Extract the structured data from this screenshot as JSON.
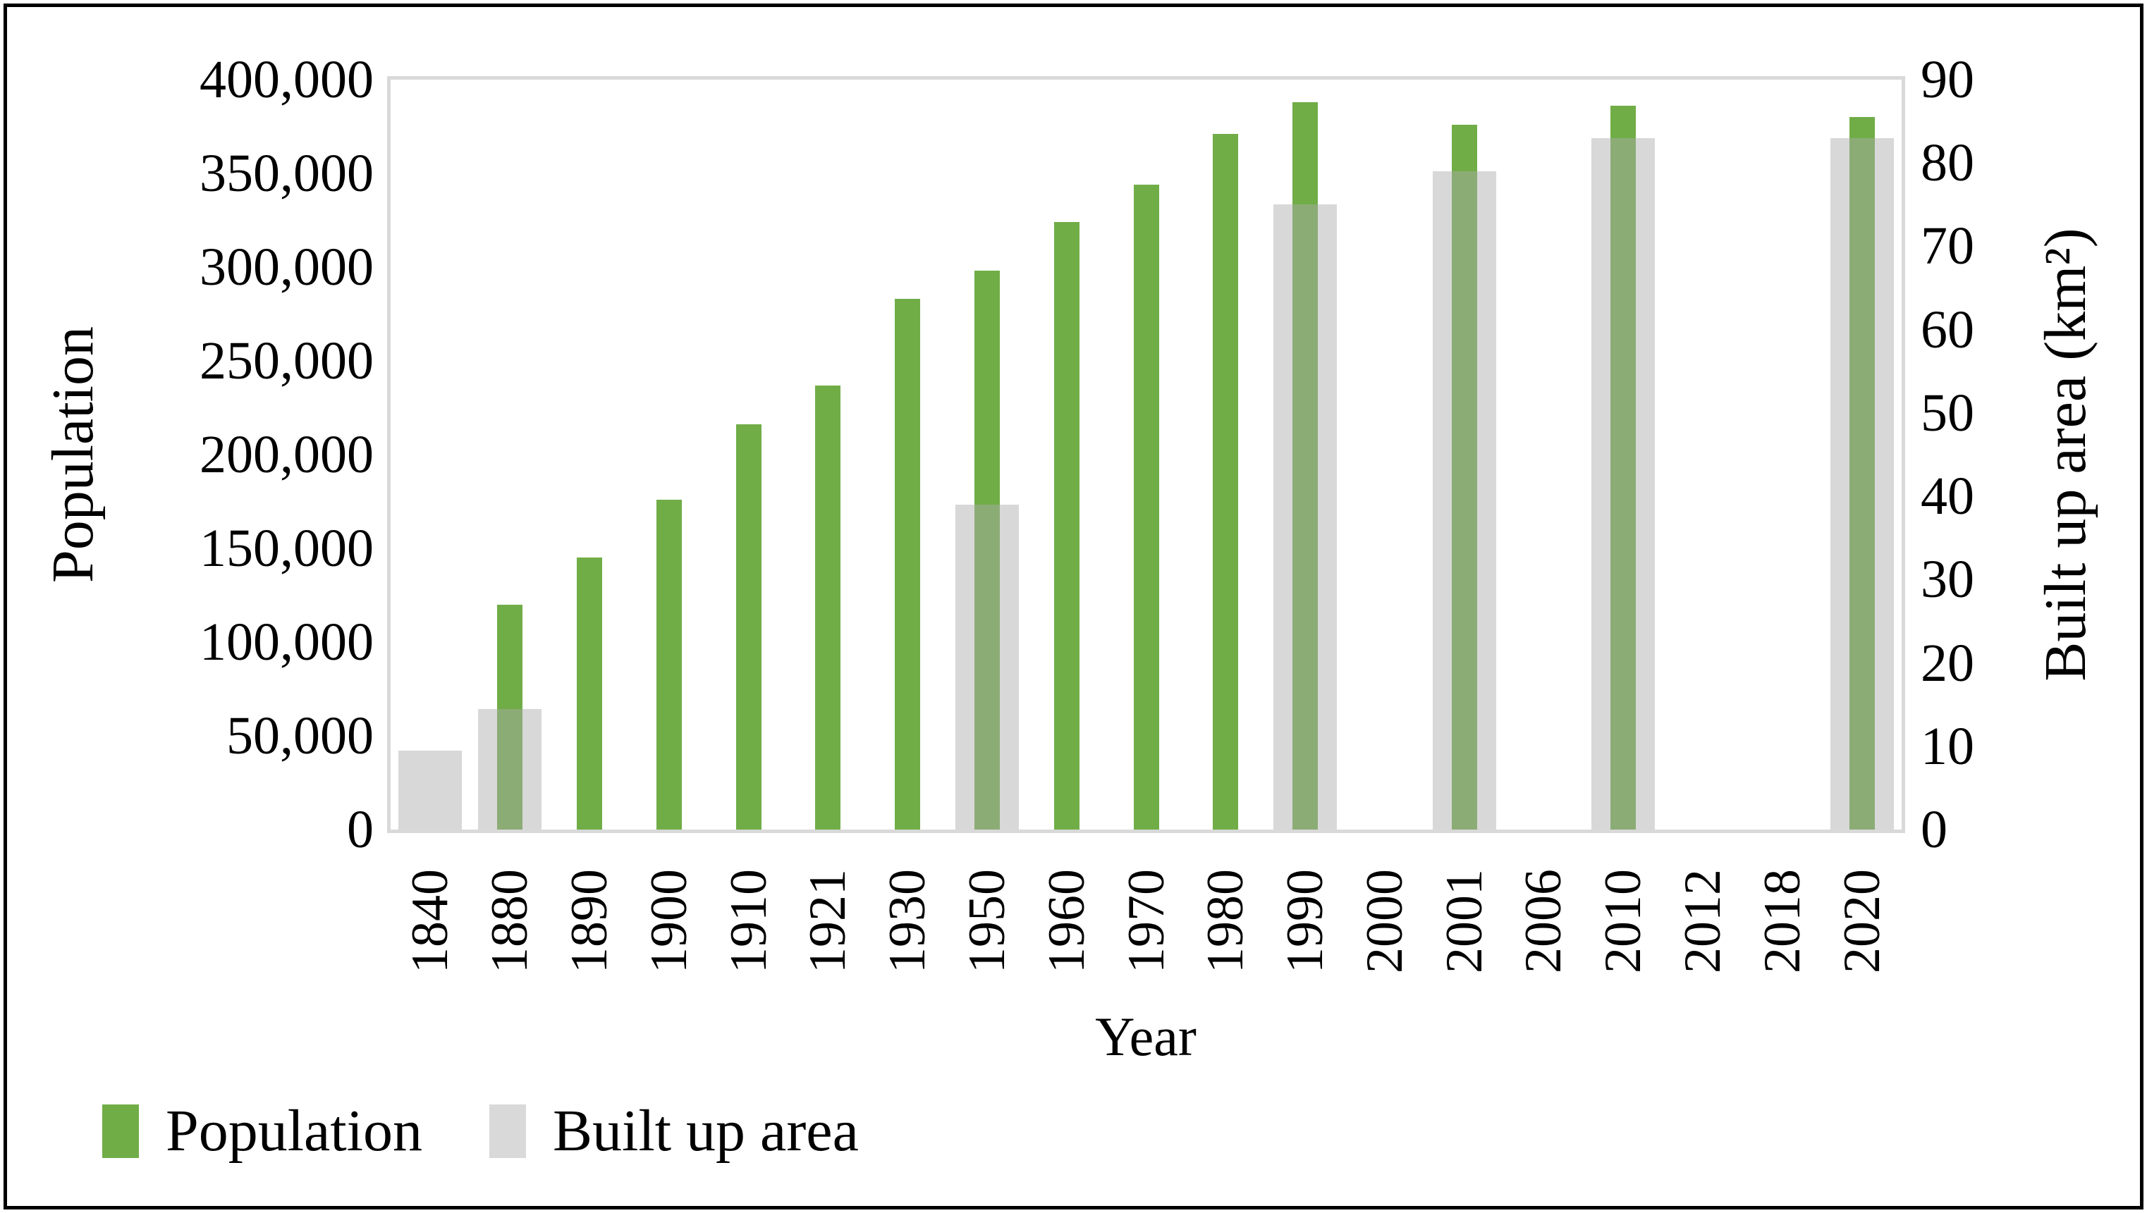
{
  "frame": {
    "background": "#FFFFFF",
    "outer_border_color": "#000000",
    "plot_border_color": "#D9D9D9"
  },
  "chart_data": {
    "type": "bar",
    "title": "",
    "xlabel": "Year",
    "grid": false,
    "legend_position": "bottom-left",
    "categories": [
      "1840",
      "1880",
      "1890",
      "1900",
      "1910",
      "1921",
      "1930",
      "1950",
      "1960",
      "1970",
      "1980",
      "1990",
      "2000",
      "2001",
      "2006",
      "2010",
      "2012",
      "2018",
      "2020"
    ],
    "left_axis": {
      "label": "Population",
      "min": 0,
      "max": 400000,
      "step": 50000,
      "tick_labels": [
        "0",
        "50,000",
        "100,000",
        "150,000",
        "200,000",
        "250,000",
        "300,000",
        "350,000",
        "400,000"
      ]
    },
    "right_axis": {
      "label": "Built up area (km²)",
      "min": 0,
      "max": 90,
      "step": 10,
      "tick_labels": [
        "0",
        "10",
        "20",
        "30",
        "40",
        "50",
        "60",
        "70",
        "80",
        "90"
      ]
    },
    "series": [
      {
        "name": "Population",
        "axis": "left",
        "color": "#70AD47",
        "values": [
          null,
          120000,
          145000,
          176000,
          216000,
          237000,
          283000,
          298000,
          324000,
          344000,
          371000,
          388000,
          null,
          376000,
          null,
          386000,
          null,
          null,
          380000
        ]
      },
      {
        "name": "Built up area",
        "axis": "right",
        "color": "#D9D9D9",
        "overlay_color": "rgba(172,172,172,0.47)",
        "values": [
          9.5,
          14.5,
          null,
          null,
          null,
          null,
          null,
          39,
          null,
          null,
          null,
          75,
          null,
          79,
          null,
          83,
          null,
          null,
          83
        ]
      }
    ],
    "legend": {
      "items": [
        {
          "label": "Population",
          "color": "#70AD47"
        },
        {
          "label": "Built up area",
          "color": "#D9D9D9"
        }
      ]
    }
  }
}
